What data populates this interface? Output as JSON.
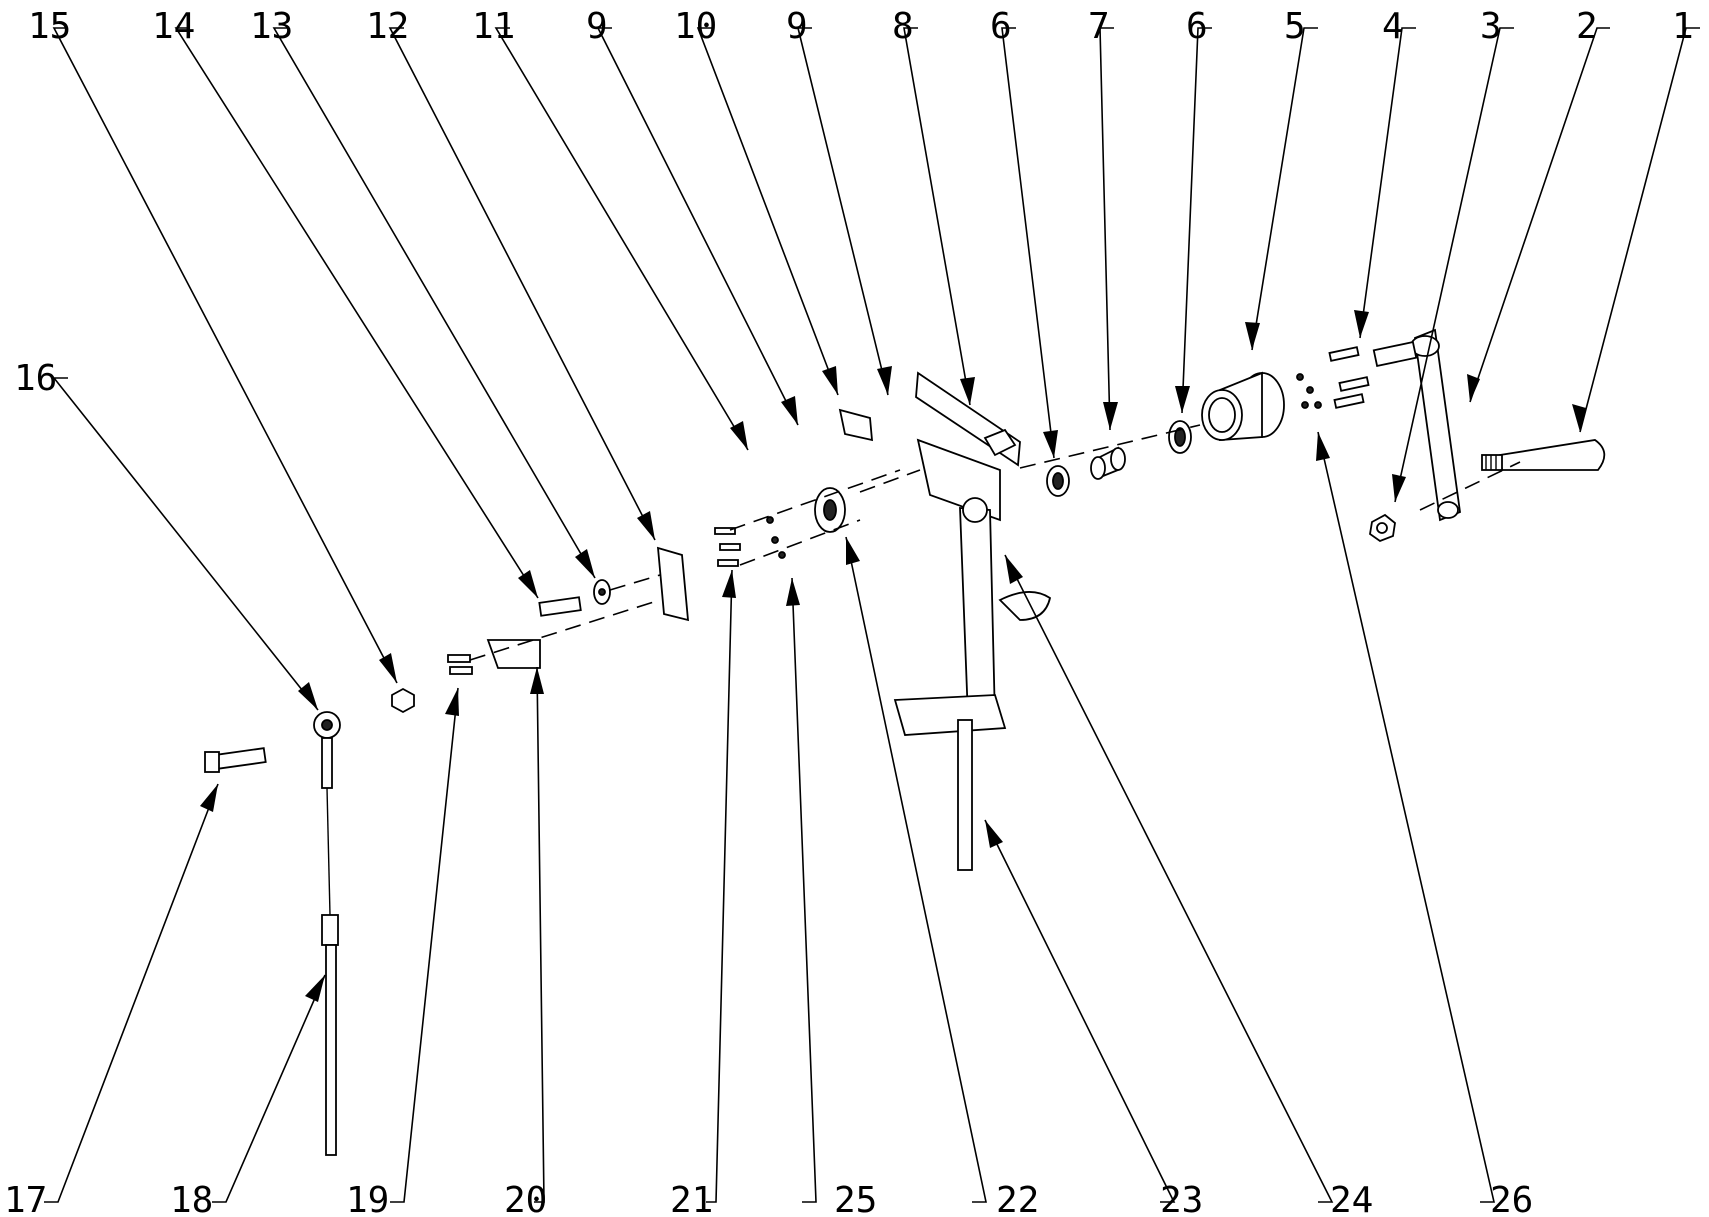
{
  "callouts": [
    {
      "id": "1",
      "text": "1"
    },
    {
      "id": "2",
      "text": "2"
    },
    {
      "id": "3",
      "text": "3"
    },
    {
      "id": "4",
      "text": "4"
    },
    {
      "id": "5",
      "text": "5"
    },
    {
      "id": "6a",
      "text": "6"
    },
    {
      "id": "7",
      "text": "7"
    },
    {
      "id": "6b",
      "text": "6"
    },
    {
      "id": "8",
      "text": "8"
    },
    {
      "id": "9a",
      "text": "9"
    },
    {
      "id": "10",
      "text": "10"
    },
    {
      "id": "9b",
      "text": "9"
    },
    {
      "id": "11",
      "text": "11"
    },
    {
      "id": "12",
      "text": "12"
    },
    {
      "id": "13",
      "text": "13"
    },
    {
      "id": "14",
      "text": "14"
    },
    {
      "id": "15",
      "text": "15"
    },
    {
      "id": "16",
      "text": "16"
    },
    {
      "id": "17",
      "text": "17"
    },
    {
      "id": "18",
      "text": "18"
    },
    {
      "id": "19",
      "text": "19"
    },
    {
      "id": "20",
      "text": "20"
    },
    {
      "id": "21",
      "text": "21"
    },
    {
      "id": "25",
      "text": "25"
    },
    {
      "id": "22",
      "text": "22"
    },
    {
      "id": "23",
      "text": "23"
    },
    {
      "id": "24",
      "text": "24"
    },
    {
      "id": "26",
      "text": "26"
    }
  ]
}
